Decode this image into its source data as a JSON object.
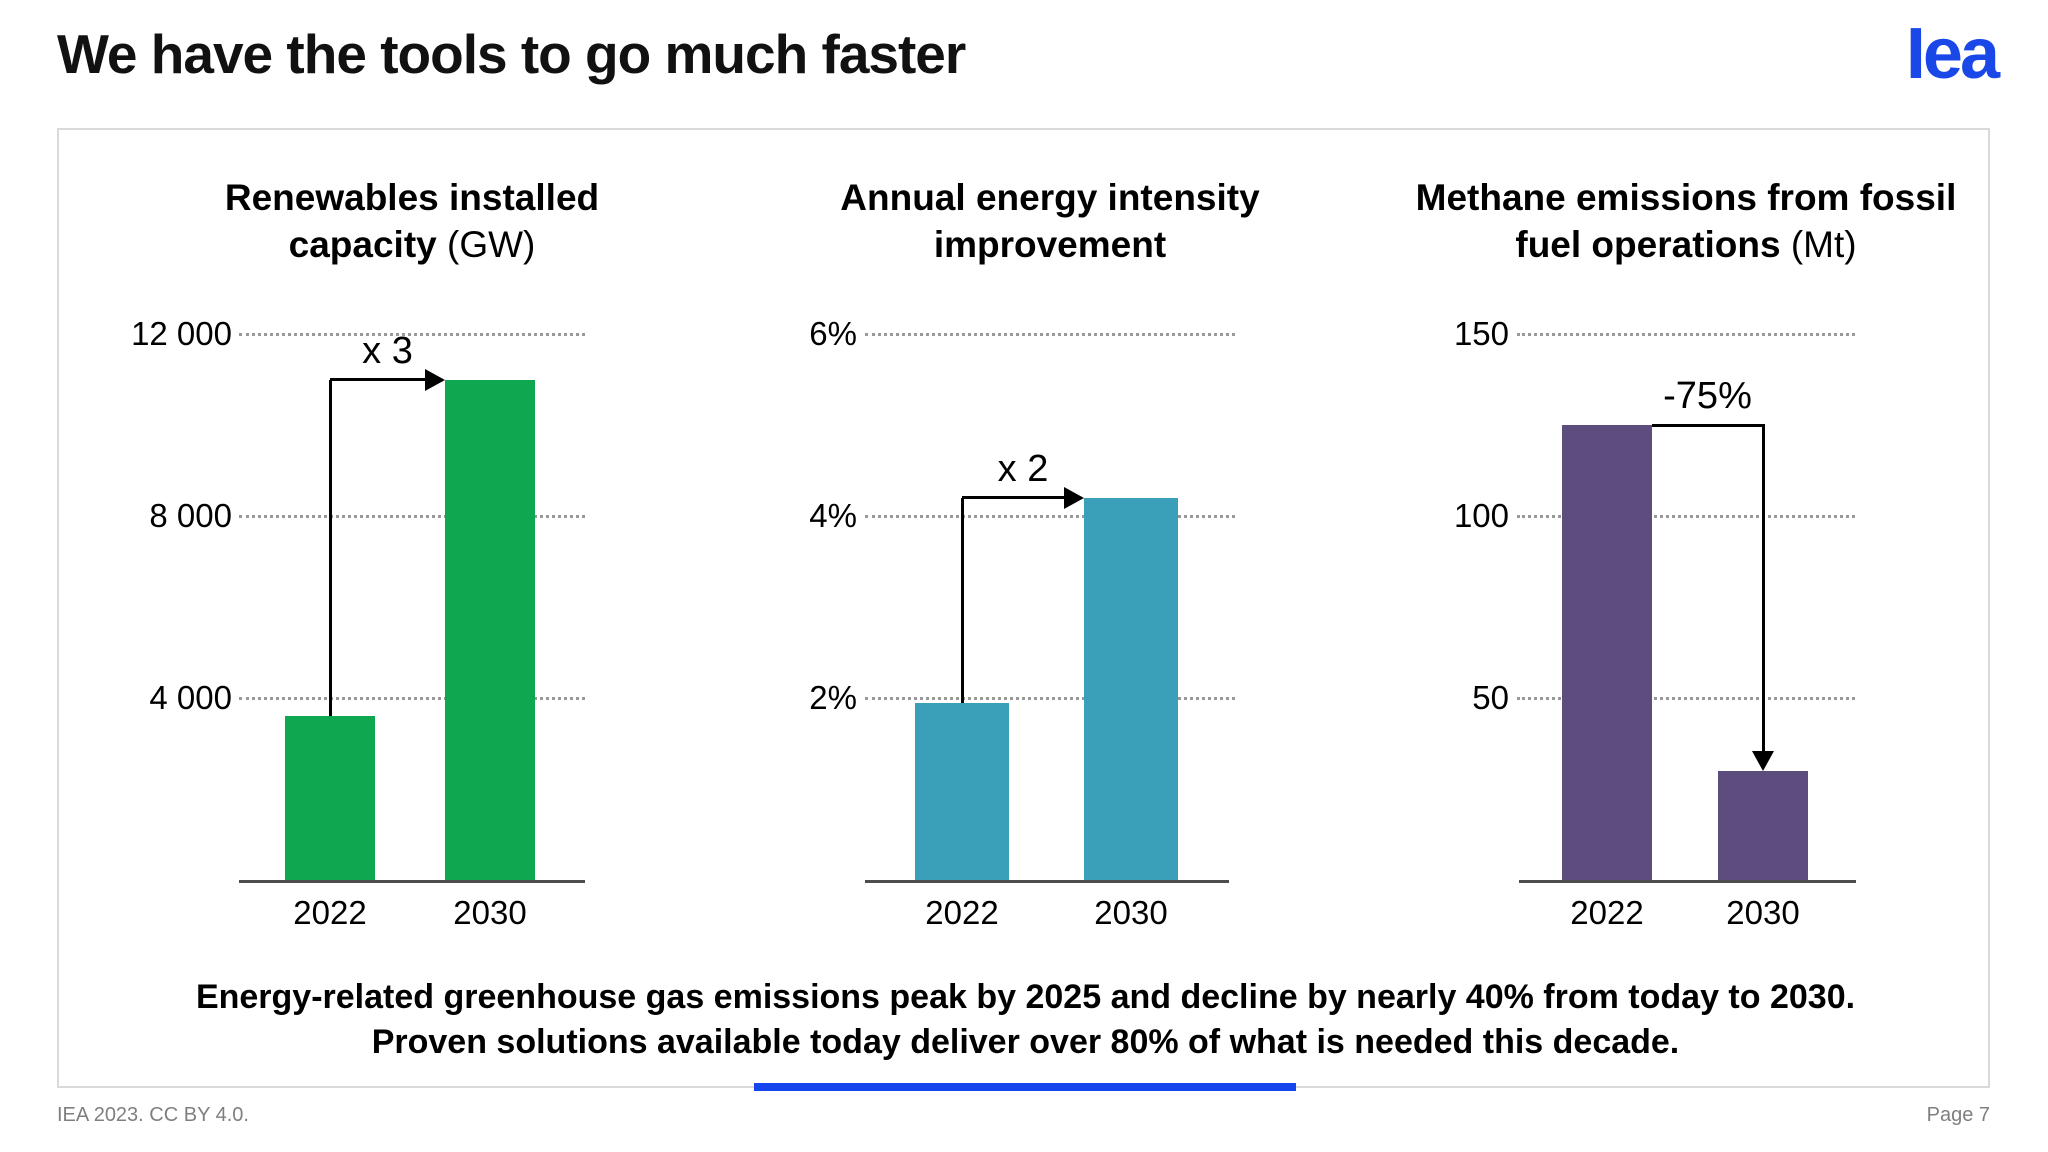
{
  "header": {
    "title": "We have the tools to go much faster",
    "logo": "Iea"
  },
  "chart_data": [
    {
      "type": "bar",
      "title": "Renewables installed capacity",
      "unit_suffix": " (GW)",
      "categories": [
        "2022",
        "2030"
      ],
      "values": [
        3600,
        11000
      ],
      "ytick_labels": [
        "4 000",
        "8 000",
        "12 000"
      ],
      "ytick_values": [
        4000,
        8000,
        12000
      ],
      "ylim": [
        0,
        12000
      ],
      "grid": "dotted",
      "legend": "none",
      "annotation": "x 3",
      "annotation_shape": "up-right-arrow",
      "color": "#0fa850"
    },
    {
      "type": "bar",
      "title": "Annual energy intensity improvement",
      "unit_suffix": "",
      "categories": [
        "2022",
        "2030"
      ],
      "values": [
        1.95,
        4.2
      ],
      "ytick_labels": [
        "2%",
        "4%",
        "6%"
      ],
      "ytick_values": [
        2,
        4,
        6
      ],
      "ylim": [
        0,
        6
      ],
      "grid": "dotted",
      "legend": "none",
      "annotation": "x 2",
      "annotation_shape": "up-right-arrow",
      "color": "#3aa0b9"
    },
    {
      "type": "bar",
      "title": "Methane emissions from fossil fuel operations",
      "unit_suffix": " (Mt)",
      "categories": [
        "2022",
        "2030"
      ],
      "values": [
        125,
        30
      ],
      "ytick_labels": [
        "50",
        "100",
        "150"
      ],
      "ytick_values": [
        50,
        100,
        150
      ],
      "ylim": [
        0,
        150
      ],
      "grid": "dotted",
      "legend": "none",
      "annotation": "-75%",
      "annotation_shape": "right-down-arrow",
      "color": "#5d4d7e"
    }
  ],
  "message": {
    "line1": "Energy-related greenhouse gas emissions peak by 2025 and decline by nearly 40% from today to 2030.",
    "line2": "Proven solutions available today deliver over 80% of what is needed this decade."
  },
  "footer": {
    "left": "IEA 2023. CC BY 4.0.",
    "right": "Page 7"
  },
  "colors": {
    "logo_blue": "#1a47e8",
    "accent_blue": "#1545ec",
    "chart1_green": "#0fa850",
    "chart2_teal": "#3aa0b9",
    "chart3_purple": "#5d4d7e"
  }
}
